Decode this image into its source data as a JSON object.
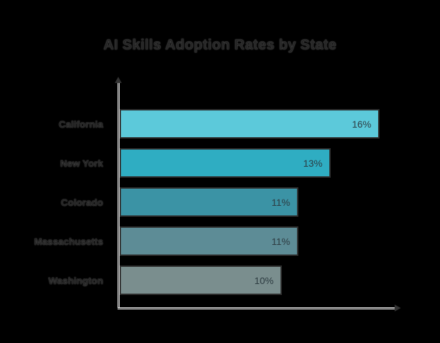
{
  "chart_data": {
    "type": "bar",
    "orientation": "horizontal",
    "title": "AI Skills Adoption Rates by State",
    "categories": [
      "California",
      "New York",
      "Colorado",
      "Massachusetts",
      "Washington"
    ],
    "values": [
      16,
      13,
      11,
      11,
      10
    ],
    "value_labels": [
      "16%",
      "13%",
      "11%",
      "11%",
      "10%"
    ],
    "xlabel": "",
    "ylabel": "",
    "xlim": [
      0,
      17
    ],
    "grid": false,
    "legend": false,
    "bar_colors": [
      "#5cc9da",
      "#2fadc2",
      "#3b93a5",
      "#5d8c96",
      "#7a8e8e"
    ],
    "colors": {
      "background": "#000000",
      "title_text": "#262626",
      "label_text": "#242424",
      "value_text": "#2c3a40",
      "bar_border": "#2e2e2e",
      "axis_fringe": "#ededed",
      "axis_core": "#3c3c3c",
      "arrowhead": "#333333"
    }
  }
}
